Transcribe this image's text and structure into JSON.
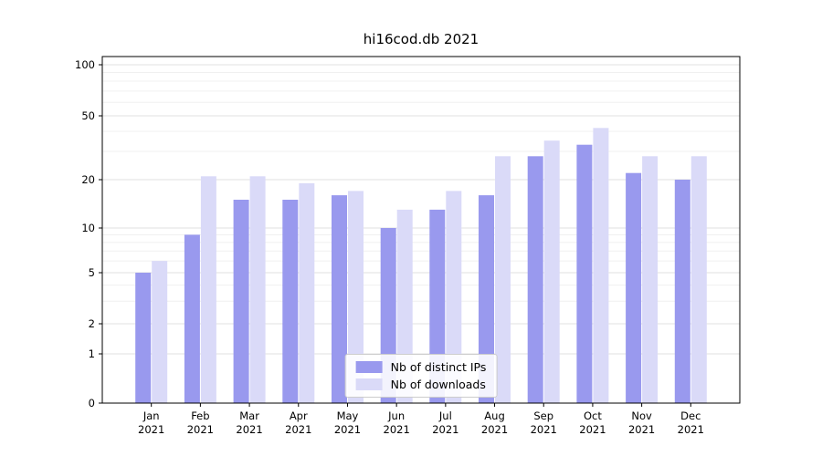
{
  "chart_data": {
    "type": "bar",
    "title": "hi16cod.db 2021",
    "categories": [
      "Jan",
      "Feb",
      "Mar",
      "Apr",
      "May",
      "Jun",
      "Jul",
      "Aug",
      "Sep",
      "Oct",
      "Nov",
      "Dec"
    ],
    "year": "2021",
    "series": [
      {
        "name": "Nb of distinct IPs",
        "color": "#9999ee",
        "values": [
          5,
          9,
          15,
          15,
          16,
          10,
          13,
          16,
          28,
          33,
          22,
          20
        ]
      },
      {
        "name": "Nb of downloads",
        "color": "#dadaf8",
        "values": [
          6,
          21,
          21,
          19,
          17,
          13,
          17,
          28,
          35,
          42,
          28,
          28
        ]
      }
    ],
    "yscale": "symlog",
    "ylim": [
      0,
      100
    ],
    "yticks": [
      0,
      1,
      2,
      5,
      10,
      20,
      50,
      100
    ],
    "minor_yticks": [
      3,
      4,
      6,
      7,
      8,
      9,
      30,
      40,
      60,
      70,
      80,
      90
    ],
    "grid": true,
    "legend_position": "lower center"
  }
}
